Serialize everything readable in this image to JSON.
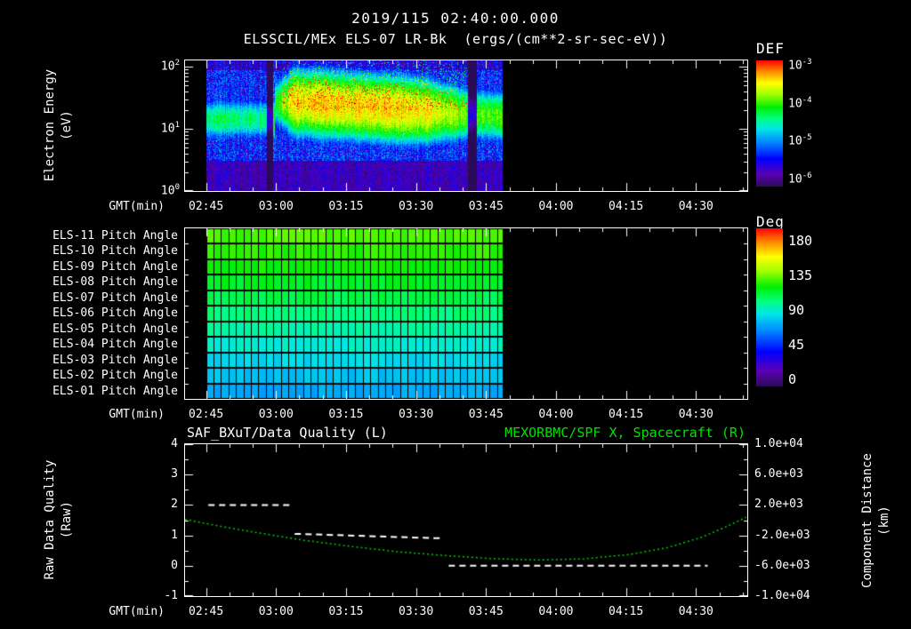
{
  "header": {
    "title": "2019/115 02:40:00.000",
    "subtitle": "ELSSCIL/MEx ELS-07 LR-Bk  (ergs/(cm**2-sr-sec-eV))"
  },
  "colors": {
    "background": "#000000",
    "foreground": "#ffffff",
    "accent_green": "#00e100",
    "rainbow_stops": [
      {
        "v": 0.0,
        "c": "#2b0a57"
      },
      {
        "v": 0.1,
        "c": "#5a00b4"
      },
      {
        "v": 0.22,
        "c": "#0000ff"
      },
      {
        "v": 0.36,
        "c": "#0090ff"
      },
      {
        "v": 0.46,
        "c": "#00e6e6"
      },
      {
        "v": 0.54,
        "c": "#00ff80"
      },
      {
        "v": 0.63,
        "c": "#00ee00"
      },
      {
        "v": 0.73,
        "c": "#a0ff00"
      },
      {
        "v": 0.82,
        "c": "#ffff00"
      },
      {
        "v": 0.91,
        "c": "#ff8c00"
      },
      {
        "v": 1.0,
        "c": "#ff0000"
      }
    ]
  },
  "time_axis": {
    "label": "GMT(min)",
    "start_min": 160.5,
    "end_min": 281,
    "minor_step_min": 5,
    "data_start_min": 165,
    "data_end_min": 228.5,
    "ticks": [
      {
        "min": 165,
        "label": "02:45"
      },
      {
        "min": 180,
        "label": "03:00"
      },
      {
        "min": 195,
        "label": "03:15"
      },
      {
        "min": 210,
        "label": "03:30"
      },
      {
        "min": 225,
        "label": "03:45"
      },
      {
        "min": 240,
        "label": "04:00"
      },
      {
        "min": 255,
        "label": "04:15"
      },
      {
        "min": 270,
        "label": "04:30"
      }
    ]
  },
  "chart_data": [
    {
      "type": "heatmap",
      "name": "electron-energy-spectrogram",
      "title": "ELSSCIL/MEx ELS-07 LR-Bk",
      "units": "ergs/(cm**2-sr-sec-eV)",
      "ylabel": "Electron Energy\n(eV)",
      "y_scale": "log",
      "ylim_ev": [
        1,
        126
      ],
      "y_ticks": [
        {
          "base": "10",
          "exp": "2"
        },
        {
          "base": "10",
          "exp": "1"
        },
        {
          "base": "10",
          "exp": "0"
        }
      ],
      "x_data_range_gmt": [
        "02:45",
        "03:48"
      ],
      "colorbar": {
        "title": "DEF",
        "scale": "log",
        "log_range": [
          -6,
          -3
        ],
        "ticks": [
          {
            "base": "10",
            "exp": "-3"
          },
          {
            "base": "10",
            "exp": "-4"
          },
          {
            "base": "10",
            "exp": "-5"
          },
          {
            "base": "10",
            "exp": "-6"
          }
        ]
      },
      "features": [
        "background electron flux near 1e-5 (blue) across 1-126 eV",
        "suprathermal band 8-50 eV near 1e-4 (green) from 02:45",
        "intensification to ~3e-4 (yellow-green) between 03:00 and 03:30",
        "narrow dark dropout near 02:58 and near 03:42",
        "flux fades after 03:40; no data after 03:48",
        "energies below ~3 eV near 1e-6 (violet/black)"
      ],
      "gen": {
        "band_quiet_log": -4.35,
        "band_active_log": -3.4,
        "burst_start_min": 179,
        "noise_log": 0.5
      }
    },
    {
      "type": "heatmap",
      "name": "pitch-angle-panels",
      "rows": [
        {
          "label": "ELS-11 Pitch Angle",
          "value_deg": 122
        },
        {
          "label": "ELS-10 Pitch Angle",
          "value_deg": 118
        },
        {
          "label": "ELS-09 Pitch Angle",
          "value_deg": 114
        },
        {
          "label": "ELS-08 Pitch Angle",
          "value_deg": 109
        },
        {
          "label": "ELS-07 Pitch Angle",
          "value_deg": 104
        },
        {
          "label": "ELS-06 Pitch Angle",
          "value_deg": 98
        },
        {
          "label": "ELS-05 Pitch Angle",
          "value_deg": 92
        },
        {
          "label": "ELS-04 Pitch Angle",
          "value_deg": 86
        },
        {
          "label": "ELS-03 Pitch Angle",
          "value_deg": 80
        },
        {
          "label": "ELS-02 Pitch Angle",
          "value_deg": 75
        },
        {
          "label": "ELS-01 Pitch Angle",
          "value_deg": 70
        }
      ],
      "cell_minutes": 1.6,
      "x_data_range_gmt": [
        "02:45",
        "03:48"
      ],
      "colorbar": {
        "title": "Deg",
        "range_deg": [
          0,
          180
        ],
        "ticks": [
          180,
          135,
          90,
          45,
          0
        ]
      }
    },
    {
      "type": "line",
      "name": "quality-and-spacecraft-distance",
      "left_title": "SAF_BXuT/Data Quality (L)",
      "right_title": "MEXORBMC/SPF X, Spacecraft (R)",
      "left_axis": {
        "label": "Raw Data Quality\n(Raw)",
        "range": [
          -1,
          4
        ],
        "ticks": [
          4,
          3,
          2,
          1,
          0,
          -1
        ]
      },
      "right_axis": {
        "label": "Component Distance\n(km)",
        "range_km": [
          -10000,
          10000
        ],
        "ticks": [
          "1.0e+04",
          "6.0e+03",
          "2.0e+03",
          "-2.0e+03",
          "-6.0e+03",
          "-1.0e+04"
        ]
      },
      "series": [
        {
          "name": "SAF_BXuT/Data Quality",
          "axis": "left",
          "color": "#ffffff",
          "style": "dashed",
          "segments": [
            [
              [
                165.5,
                2.0
              ],
              [
                183,
                2.0
              ]
            ],
            [
              [
                184,
                1.05
              ],
              [
                216,
                0.9
              ]
            ],
            [
              [
                217,
                0.0
              ],
              [
                272.5,
                0.0
              ]
            ]
          ]
        },
        {
          "name": "MEXORBMC/SPF X Spacecraft",
          "axis": "right",
          "color": "#00cc00",
          "style": "dotted",
          "points_min_km": [
            [
              160.5,
              100
            ],
            [
              168,
              -800
            ],
            [
              176,
              -1650
            ],
            [
              186,
              -2650
            ],
            [
              196,
              -3450
            ],
            [
              206,
              -4150
            ],
            [
              216,
              -4650
            ],
            [
              226,
              -5050
            ],
            [
              236,
              -5250
            ],
            [
              246,
              -5100
            ],
            [
              256,
              -4500
            ],
            [
              264,
              -3600
            ],
            [
              271,
              -2300
            ],
            [
              276,
              -1000
            ],
            [
              280.8,
              400
            ]
          ]
        }
      ]
    }
  ]
}
